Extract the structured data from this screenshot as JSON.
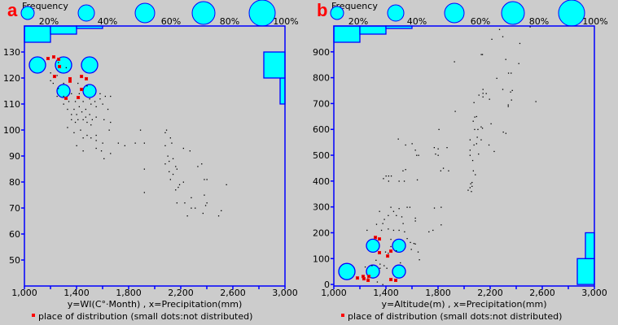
{
  "colors": {
    "background": "#cccccc",
    "axis": "#0000ff",
    "fill": "#00ffff",
    "distributed": "#ff0000",
    "dot": "#000000",
    "panel_label": "#ff0000"
  },
  "frequency_legend": {
    "title": "Frequency",
    "levels": [
      20,
      40,
      60,
      80,
      100
    ],
    "labels": [
      "20%",
      "40%",
      "60%",
      "80%",
      "100%"
    ]
  },
  "legend_text": "place of distribution (small dots:not distributed)",
  "chart_data": [
    {
      "type": "scatter",
      "panel": "a",
      "xlabel": "y=WI(C°·Month) , x=Precipitation(mm)",
      "xlim": [
        1000,
        3000
      ],
      "ylim": [
        140,
        40
      ],
      "x_ticks": [
        1000,
        1200,
        1400,
        1600,
        1800,
        2000,
        2200,
        2400,
        2600,
        2800,
        3000
      ],
      "x_tick_labels": {
        "1000": "1,000",
        "1400": "1,400",
        "1800": "1,800",
        "2200": "2,200",
        "2600": "2,600",
        "3000": "3,000"
      },
      "y_ticks": [
        50,
        60,
        70,
        80,
        90,
        100,
        110,
        120,
        130
      ],
      "y_tick_labels": [
        "50",
        "60",
        "70",
        "80",
        "90",
        "100",
        "110",
        "120",
        "130"
      ],
      "top_histogram": [
        {
          "bin": [
            1000,
            1200
          ],
          "freq": 20
        },
        {
          "bin": [
            1200,
            1400
          ],
          "freq": 10
        },
        {
          "bin": [
            1400,
            1600
          ],
          "freq": 3
        }
      ],
      "right_histogram": [
        {
          "bin": [
            110,
            120
          ],
          "freq": 6
        },
        {
          "bin": [
            120,
            130
          ],
          "freq": 26
        }
      ],
      "frequency_circles": [
        {
          "x": 1100,
          "y": 125,
          "freq": 40
        },
        {
          "x": 1300,
          "y": 125,
          "freq": 40
        },
        {
          "x": 1500,
          "y": 125,
          "freq": 40
        },
        {
          "x": 1300,
          "y": 115,
          "freq": 20
        },
        {
          "x": 1500,
          "y": 115,
          "freq": 20
        }
      ],
      "distributed": [
        [
          1319,
          112.2
        ],
        [
          1413,
          112.5
        ],
        [
          1438,
          115.6
        ],
        [
          1350,
          118.8
        ],
        [
          1350,
          119.7
        ],
        [
          1231,
          120.6
        ],
        [
          1438,
          120.6
        ],
        [
          1475,
          119.7
        ],
        [
          1269,
          124.4
        ],
        [
          1181,
          127.5
        ],
        [
          1225,
          128.1
        ],
        [
          1263,
          127.2
        ]
      ],
      "not_distributed": [
        [
          2250,
          67
        ],
        [
          2490,
          67
        ],
        [
          2510,
          69
        ],
        [
          2370,
          68
        ],
        [
          2280,
          70
        ],
        [
          2310,
          70
        ],
        [
          2170,
          72
        ],
        [
          2230,
          72
        ],
        [
          2390,
          71
        ],
        [
          2400,
          72
        ],
        [
          2280,
          74
        ],
        [
          2380,
          75
        ],
        [
          2160,
          77
        ],
        [
          2180,
          78
        ],
        [
          2190,
          79
        ],
        [
          2220,
          80
        ],
        [
          2380,
          81
        ],
        [
          2400,
          81
        ],
        [
          2550,
          79
        ],
        [
          1920,
          76
        ],
        [
          2120,
          81
        ],
        [
          2140,
          83
        ],
        [
          2110,
          84
        ],
        [
          2170,
          85
        ],
        [
          2160,
          86
        ],
        [
          2330,
          86
        ],
        [
          2360,
          87
        ],
        [
          2080,
          87
        ],
        [
          2110,
          88
        ],
        [
          2140,
          89
        ],
        [
          2100,
          90
        ],
        [
          2270,
          92
        ],
        [
          2220,
          93
        ],
        [
          1920,
          85
        ],
        [
          2080,
          94
        ],
        [
          2130,
          95
        ],
        [
          2120,
          97
        ],
        [
          2080,
          99
        ],
        [
          2090,
          100
        ],
        [
          1610,
          89
        ],
        [
          1450,
          92
        ],
        [
          1550,
          93
        ],
        [
          1590,
          92
        ],
        [
          1660,
          91
        ],
        [
          1600,
          95
        ],
        [
          1720,
          95
        ],
        [
          1770,
          94
        ],
        [
          1850,
          95
        ],
        [
          1920,
          95
        ],
        [
          1890,
          100
        ],
        [
          1550,
          96
        ],
        [
          1510,
          97
        ],
        [
          1550,
          98
        ],
        [
          1400,
          94
        ],
        [
          1450,
          97
        ],
        [
          1380,
          99
        ],
        [
          1480,
          98
        ],
        [
          1510,
          102
        ],
        [
          1330,
          101
        ],
        [
          1390,
          103
        ],
        [
          1360,
          104
        ],
        [
          1410,
          104
        ],
        [
          1450,
          104
        ],
        [
          1480,
          103
        ],
        [
          1520,
          104
        ],
        [
          1360,
          106
        ],
        [
          1400,
          106
        ],
        [
          1440,
          107
        ],
        [
          1500,
          106
        ],
        [
          1550,
          105
        ],
        [
          1610,
          104
        ],
        [
          1650,
          100
        ],
        [
          1660,
          103
        ],
        [
          1640,
          108
        ],
        [
          1600,
          110
        ],
        [
          1330,
          108
        ],
        [
          1380,
          108
        ],
        [
          1420,
          109
        ],
        [
          1470,
          108
        ],
        [
          1510,
          110
        ],
        [
          1550,
          109
        ],
        [
          1300,
          110
        ],
        [
          1340,
          111
        ],
        [
          1390,
          111
        ],
        [
          1450,
          111
        ],
        [
          1500,
          112
        ],
        [
          1580,
          112
        ],
        [
          1620,
          113
        ],
        [
          1660,
          113
        ],
        [
          1250,
          113
        ],
        [
          1300,
          113
        ],
        [
          1360,
          114
        ],
        [
          1420,
          114
        ],
        [
          1260,
          116
        ],
        [
          1220,
          118
        ],
        [
          1200,
          119
        ],
        [
          1300,
          118
        ],
        [
          1410,
          118
        ],
        [
          1480,
          117
        ],
        [
          1250,
          121
        ],
        [
          1540,
          111
        ],
        [
          1470,
          105
        ],
        [
          1430,
          100
        ],
        [
          1580,
          114
        ],
        [
          1200,
          122
        ],
        [
          1260,
          126
        ],
        [
          1320,
          124
        ]
      ]
    },
    {
      "type": "scatter",
      "panel": "b",
      "xlabel": "y=Altitude(m) , x=Precipitation(mm)",
      "xlim": [
        1000,
        3000
      ],
      "ylim": [
        1000,
        -6
      ],
      "x_ticks": [
        1000,
        1200,
        1400,
        1600,
        1800,
        2000,
        2200,
        2400,
        2600,
        2800,
        3000
      ],
      "x_tick_labels": {
        "1000": "1,000",
        "1400": "1,400",
        "1800": "1,800",
        "2200": "2,200",
        "2600": "2,600",
        "3000": "3,000"
      },
      "y_ticks": [
        0,
        100,
        200,
        300,
        400,
        500,
        600,
        700,
        800,
        900
      ],
      "y_tick_labels": [
        "0",
        "100",
        "200",
        "300",
        "400",
        "500",
        "600",
        "700",
        "800",
        "900"
      ],
      "top_histogram": [
        {
          "bin": [
            1000,
            1200
          ],
          "freq": 20
        },
        {
          "bin": [
            1200,
            1400
          ],
          "freq": 10
        },
        {
          "bin": [
            1400,
            1600
          ],
          "freq": 3
        }
      ],
      "right_histogram": [
        {
          "bin": [
            0,
            100
          ],
          "freq": 21
        },
        {
          "bin": [
            100,
            200
          ],
          "freq": 11
        }
      ],
      "frequency_circles": [
        {
          "x": 1100,
          "y": 50,
          "freq": 40
        },
        {
          "x": 1300,
          "y": 50,
          "freq": 20
        },
        {
          "x": 1500,
          "y": 50,
          "freq": 20
        },
        {
          "x": 1300,
          "y": 150,
          "freq": 20
        },
        {
          "x": 1500,
          "y": 150,
          "freq": 20
        }
      ],
      "distributed": [
        [
          1319,
          182
        ],
        [
          1350,
          176
        ],
        [
          1350,
          123
        ],
        [
          1438,
          129
        ],
        [
          1413,
          110
        ],
        [
          1181,
          25
        ],
        [
          1225,
          31
        ],
        [
          1231,
          22
        ],
        [
          1263,
          16
        ],
        [
          1269,
          31
        ],
        [
          1438,
          19
        ],
        [
          1475,
          16
        ]
      ],
      "not_distributed": [
        [
          2271,
          987
        ],
        [
          2296,
          959
        ],
        [
          2212,
          949
        ],
        [
          2427,
          933
        ],
        [
          2506,
          997
        ],
        [
          2131,
          890
        ],
        [
          2140,
          890
        ],
        [
          2319,
          871
        ],
        [
          1925,
          862
        ],
        [
          2419,
          855
        ],
        [
          2340,
          818
        ],
        [
          2360,
          818
        ],
        [
          2250,
          798
        ],
        [
          2296,
          755
        ],
        [
          2369,
          751
        ],
        [
          2356,
          745
        ],
        [
          2144,
          755
        ],
        [
          2144,
          740
        ],
        [
          2169,
          739
        ],
        [
          2113,
          733
        ],
        [
          2144,
          726
        ],
        [
          2194,
          717
        ],
        [
          2363,
          714
        ],
        [
          2338,
          695
        ],
        [
          2338,
          689
        ],
        [
          2550,
          708
        ],
        [
          2075,
          704
        ],
        [
          1931,
          670
        ],
        [
          2081,
          648
        ],
        [
          2095,
          650
        ],
        [
          2069,
          632
        ],
        [
          2080,
          600
        ],
        [
          2105,
          600
        ],
        [
          2130,
          610
        ],
        [
          2140,
          605
        ],
        [
          2206,
          622
        ],
        [
          2300,
          590
        ],
        [
          2320,
          585
        ],
        [
          2045,
          560
        ],
        [
          2130,
          560
        ],
        [
          2100,
          570
        ],
        [
          2075,
          540
        ],
        [
          2095,
          545
        ],
        [
          2045,
          520
        ],
        [
          2045,
          500
        ],
        [
          2065,
          480
        ],
        [
          2110,
          505
        ],
        [
          2190,
          540
        ],
        [
          2230,
          515
        ],
        [
          2070,
          440
        ],
        [
          2085,
          425
        ],
        [
          2060,
          395
        ],
        [
          2050,
          390
        ],
        [
          2045,
          375
        ],
        [
          2060,
          380
        ],
        [
          2030,
          365
        ],
        [
          2055,
          360
        ],
        [
          1806,
          600
        ],
        [
          1494,
          563
        ],
        [
          1550,
          540
        ],
        [
          1600,
          545
        ],
        [
          1625,
          520
        ],
        [
          1635,
          500
        ],
        [
          1650,
          500
        ],
        [
          1770,
          530
        ],
        [
          1800,
          525
        ],
        [
          1780,
          505
        ],
        [
          1800,
          500
        ],
        [
          1868,
          530
        ],
        [
          1840,
          450
        ],
        [
          1820,
          440
        ],
        [
          1880,
          440
        ],
        [
          1530,
          440
        ],
        [
          1550,
          445
        ],
        [
          1400,
          420
        ],
        [
          1420,
          420
        ],
        [
          1440,
          420
        ],
        [
          1380,
          410
        ],
        [
          1420,
          400
        ],
        [
          1640,
          405
        ],
        [
          1500,
          400
        ],
        [
          1540,
          400
        ],
        [
          1350,
          283
        ],
        [
          1375,
          236
        ],
        [
          1387,
          252
        ],
        [
          1417,
          267
        ],
        [
          1437,
          299
        ],
        [
          1458,
          283
        ],
        [
          1479,
          267
        ],
        [
          1500,
          294
        ],
        [
          1521,
          262
        ],
        [
          1531,
          236
        ],
        [
          1562,
          299
        ],
        [
          1583,
          299
        ],
        [
          1625,
          257
        ],
        [
          1625,
          246
        ],
        [
          1771,
          296
        ],
        [
          1760,
          210
        ],
        [
          1729,
          204
        ],
        [
          1823,
          231
        ],
        [
          1823,
          299
        ],
        [
          1254,
          210
        ],
        [
          1327,
          233
        ],
        [
          1365,
          210
        ],
        [
          1417,
          215
        ],
        [
          1458,
          210
        ],
        [
          1500,
          210
        ],
        [
          1542,
          204
        ],
        [
          1437,
          175
        ],
        [
          1562,
          178
        ],
        [
          1587,
          163
        ],
        [
          1614,
          159
        ],
        [
          1625,
          157
        ],
        [
          1594,
          136
        ],
        [
          1646,
          126
        ],
        [
          1656,
          96
        ],
        [
          1437,
          147
        ],
        [
          1479,
          131
        ],
        [
          1396,
          126
        ],
        [
          1417,
          121
        ],
        [
          1323,
          94
        ],
        [
          1354,
          79
        ],
        [
          1385,
          73
        ],
        [
          1292,
          73
        ],
        [
          1240,
          68
        ],
        [
          1354,
          63
        ],
        [
          1406,
          63
        ],
        [
          1510,
          84
        ],
        [
          1260,
          26
        ],
        [
          1333,
          10
        ],
        [
          1375,
          0
        ]
      ]
    }
  ]
}
